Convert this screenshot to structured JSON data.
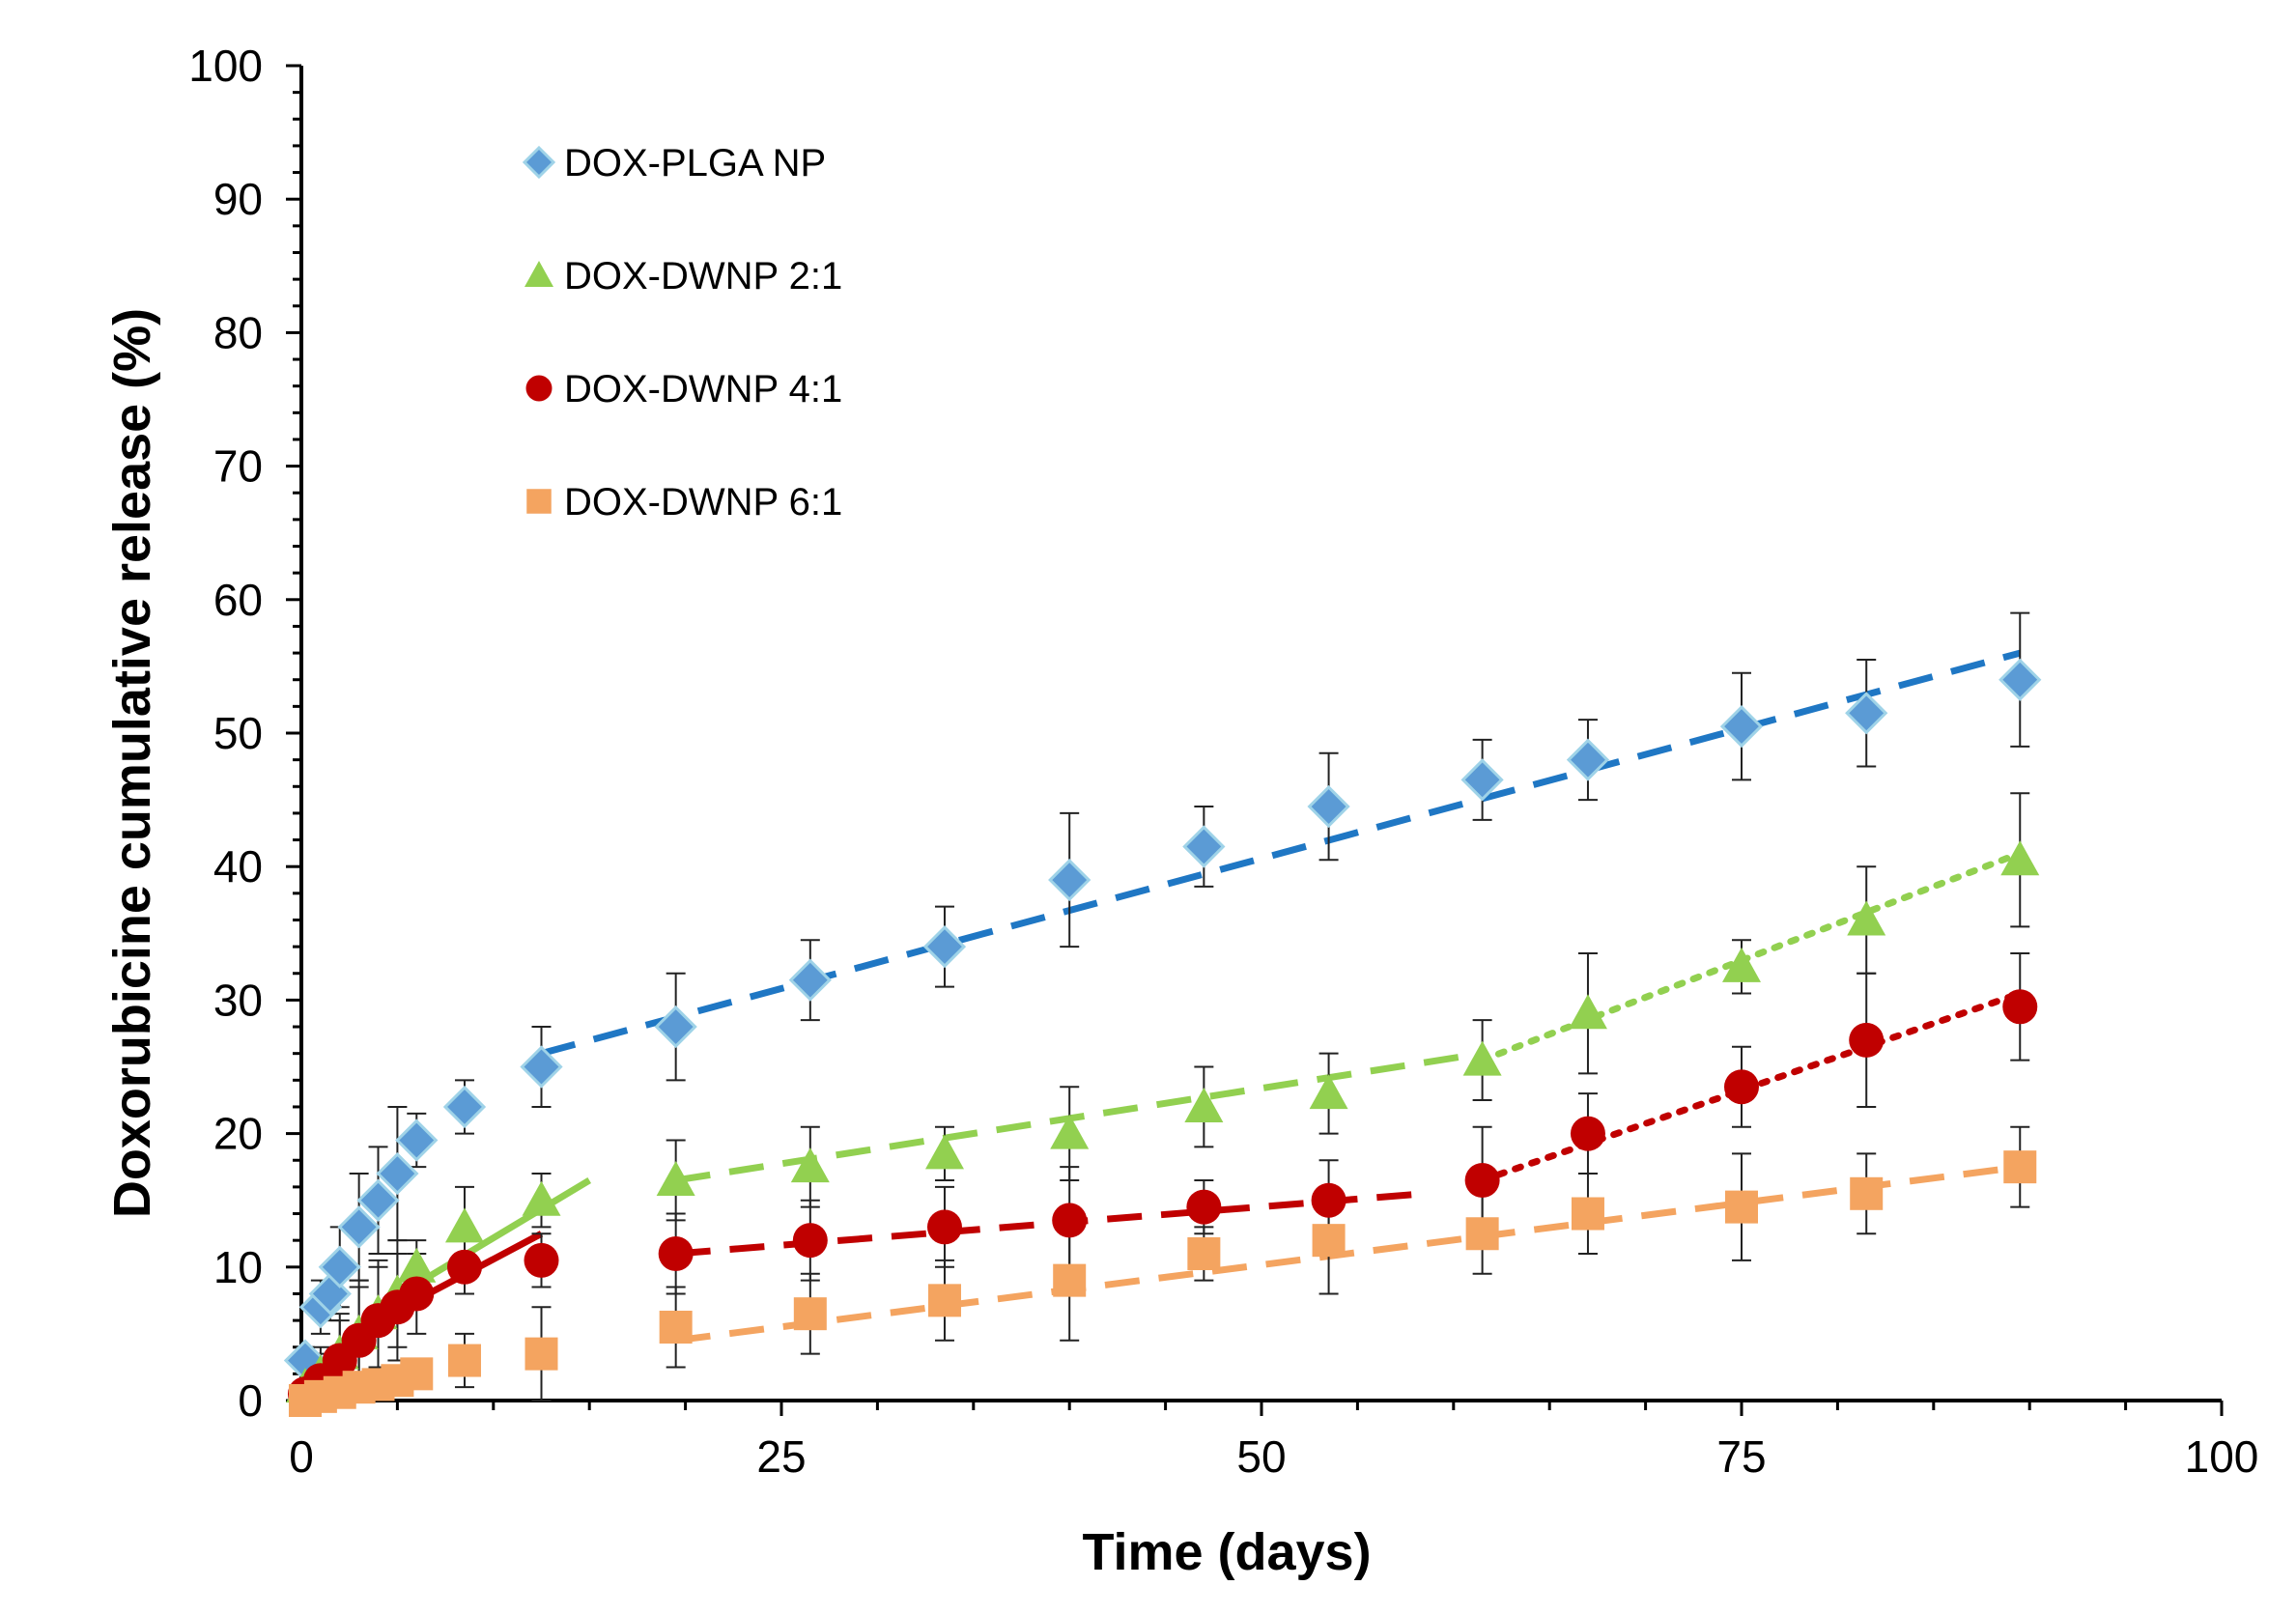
{
  "chart_data": {
    "type": "scatter",
    "xlabel": "Time (days)",
    "ylabel": "Doxorubicine cumulative release (%)",
    "xlim": [
      0,
      100
    ],
    "ylim": [
      0,
      100
    ],
    "x_ticks": [
      0,
      25,
      50,
      75,
      100
    ],
    "y_ticks": [
      0,
      10,
      20,
      30,
      40,
      50,
      60,
      70,
      80,
      90,
      100
    ],
    "grid": false,
    "legend_position": "top-left",
    "series": [
      {
        "name": "DOX-PLGA NP",
        "marker": "diamond",
        "color": "#5b9bd5",
        "x": [
          0.2,
          1,
          1.5,
          2,
          3,
          4,
          5,
          6,
          8.5,
          12.5,
          19.5,
          26.5,
          33.5,
          40,
          47,
          53.5,
          61.5,
          67,
          75,
          81.5,
          89.5
        ],
        "y": [
          3,
          7,
          8,
          10,
          13,
          15,
          17,
          19.5,
          22,
          25,
          28,
          31.5,
          34,
          39,
          41.5,
          44.5,
          46.5,
          48,
          50.5,
          51.5,
          54
        ],
        "error": [
          1,
          2,
          2,
          3,
          4,
          4,
          5,
          2,
          2,
          3,
          4,
          3,
          3,
          5,
          3,
          4,
          3,
          3,
          4,
          4,
          5
        ]
      },
      {
        "name": "DOX-DWNP 2:1",
        "marker": "triangle",
        "color": "#92d050",
        "x": [
          0.2,
          1,
          2,
          3,
          4,
          5,
          6,
          8.5,
          12.5,
          19.5,
          26.5,
          33.5,
          40,
          47,
          53.5,
          61.5,
          67,
          75,
          81.5,
          89.5
        ],
        "y": [
          1,
          2,
          3.5,
          5,
          6.5,
          8,
          10,
          13,
          15,
          16.5,
          17.5,
          18.5,
          20,
          22,
          23,
          25.5,
          29,
          32.5,
          36,
          40.5
        ],
        "error": [
          1,
          2,
          3,
          4,
          4,
          4,
          2,
          3,
          2,
          3,
          3,
          2,
          3.5,
          3,
          3,
          3,
          4.5,
          2,
          4,
          5
        ]
      },
      {
        "name": "DOX-DWNP 4:1",
        "marker": "circle",
        "color": "#c00000",
        "x": [
          0.2,
          1,
          2,
          3,
          4,
          5,
          6,
          8.5,
          12.5,
          19.5,
          26.5,
          33.5,
          40,
          47,
          53.5,
          61.5,
          67,
          75,
          81.5,
          89.5
        ],
        "y": [
          0.5,
          1.5,
          3,
          4.5,
          6,
          7,
          8,
          10,
          10.5,
          11,
          12,
          13,
          13.5,
          14.5,
          15,
          16.5,
          20,
          23.5,
          27,
          29.5
        ],
        "error": [
          1,
          2,
          3,
          4,
          4,
          4,
          3,
          2,
          2,
          3,
          3,
          3,
          4,
          2,
          3,
          4,
          3,
          3,
          5,
          4
        ]
      },
      {
        "name": "DOX-DWNP 6:1",
        "marker": "square",
        "color": "#f4a460",
        "x": [
          0.2,
          1,
          2,
          3,
          4,
          5,
          6,
          8.5,
          12.5,
          19.5,
          26.5,
          33.5,
          40,
          47,
          53.5,
          61.5,
          67,
          75,
          81.5,
          89.5
        ],
        "y": [
          0,
          0.3,
          0.6,
          1,
          1.2,
          1.5,
          2,
          3,
          3.5,
          5.5,
          6.5,
          7.5,
          9,
          11,
          12,
          12.5,
          14,
          14.5,
          15.5,
          17.5
        ],
        "error": [
          0.5,
          0.5,
          1,
          1,
          1,
          1,
          1,
          2,
          3.5,
          3,
          3,
          3,
          4.5,
          2,
          4,
          3,
          3,
          4,
          3,
          3
        ]
      }
    ],
    "trendlines": [
      {
        "series": "DOX-PLGA NP",
        "style": "dashed",
        "color": "#1f77c4",
        "x": [
          12.5,
          89.5
        ],
        "y": [
          26,
          56
        ]
      },
      {
        "series": "DOX-DWNP 2:1",
        "style": "solid",
        "color": "#92d050",
        "x": [
          4,
          15
        ],
        "y": [
          7,
          16.5
        ]
      },
      {
        "series": "DOX-DWNP 2:1",
        "style": "dashed",
        "color": "#92d050",
        "x": [
          19.5,
          61.5
        ],
        "y": [
          16.5,
          26
        ]
      },
      {
        "series": "DOX-DWNP 2:1",
        "style": "dotted",
        "color": "#92d050",
        "x": [
          61.5,
          89.5
        ],
        "y": [
          25.5,
          41
        ]
      },
      {
        "series": "DOX-DWNP 4:1",
        "style": "solid",
        "color": "#c00000",
        "x": [
          4,
          12.5
        ],
        "y": [
          6,
          12.5
        ]
      },
      {
        "series": "DOX-DWNP 4:1",
        "style": "dashed",
        "color": "#c00000",
        "x": [
          19.5,
          58.5
        ],
        "y": [
          11,
          15.5
        ]
      },
      {
        "series": "DOX-DWNP 4:1",
        "style": "dotted",
        "color": "#c00000",
        "x": [
          61.5,
          89.5
        ],
        "y": [
          16.5,
          30.5
        ]
      },
      {
        "series": "DOX-DWNP 6:1",
        "style": "dashed",
        "color": "#f4a460",
        "x": [
          19.5,
          89.5
        ],
        "y": [
          4.5,
          17.5
        ]
      }
    ]
  }
}
